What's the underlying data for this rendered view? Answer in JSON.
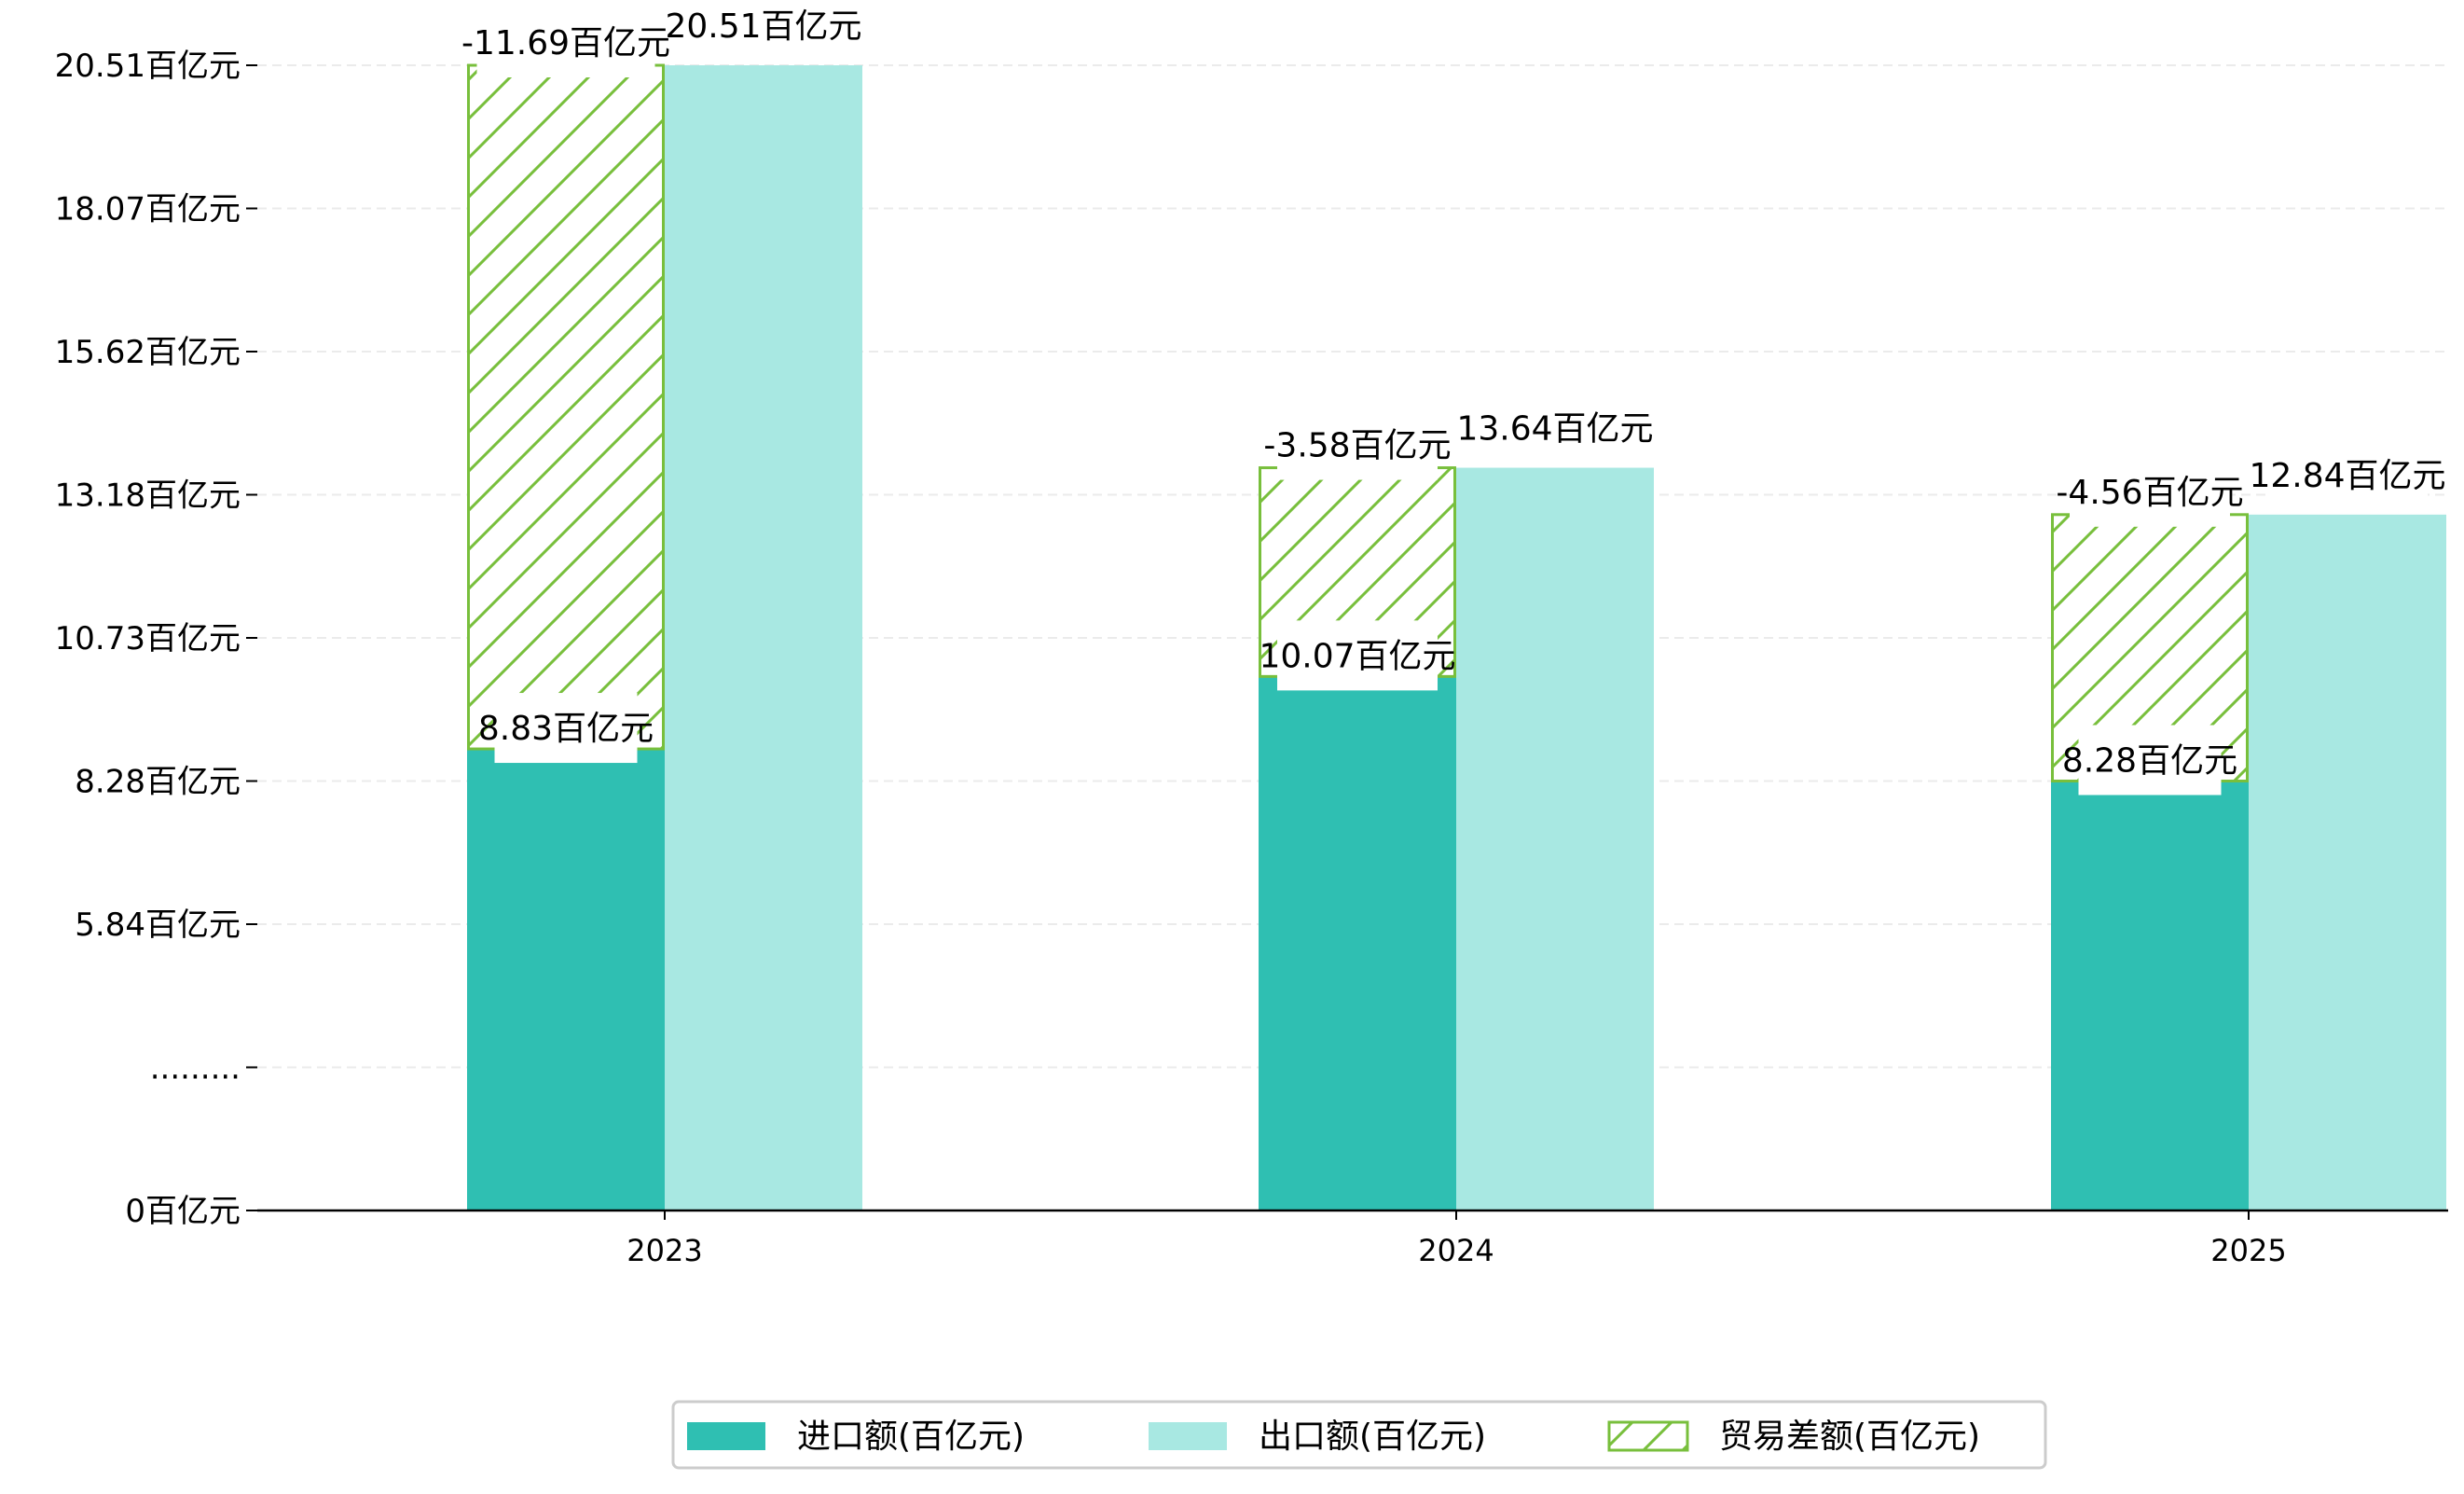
{
  "chart_data": {
    "type": "bar",
    "title": "",
    "xlabel": "",
    "ylabel": "",
    "categories": [
      "2023",
      "2024",
      "2025"
    ],
    "series": [
      {
        "name": "进口额(百亿元)",
        "values": [
          8.83,
          10.07,
          8.28
        ],
        "color": "#2fbfb2",
        "labels": [
          "8.83百亿元",
          "10.07百亿元",
          "8.28百亿元"
        ]
      },
      {
        "name": "出口额(百亿元)",
        "values": [
          20.51,
          13.64,
          12.84
        ],
        "color": "#a8e8e2",
        "labels": [
          "20.51百亿元",
          "13.64百亿元",
          "12.84百亿元"
        ]
      },
      {
        "name": "贸易差额(百亿元)",
        "values": [
          -11.69,
          -3.58,
          -4.56
        ],
        "color": "#78bf3c",
        "pattern": "hatch",
        "labels": [
          "-11.69百亿元",
          "-3.58百亿元",
          "-4.56百亿元"
        ]
      }
    ],
    "y_ticks": [
      {
        "value": 0,
        "label": "0百亿元"
      },
      {
        "value": null,
        "label": "........."
      },
      {
        "value": 5.84,
        "label": "5.84百亿元"
      },
      {
        "value": 8.28,
        "label": "8.28百亿元"
      },
      {
        "value": 10.73,
        "label": "10.73百亿元"
      },
      {
        "value": 13.18,
        "label": "13.18百亿元"
      },
      {
        "value": 15.62,
        "label": "15.62百亿元"
      },
      {
        "value": 18.07,
        "label": "18.07百亿元"
      },
      {
        "value": 20.51,
        "label": "20.51百亿元"
      }
    ],
    "ylim": [
      0,
      20.51
    ],
    "y_axis_break": true,
    "grid": "horizontal dashed",
    "legend_position": "bottom-center"
  }
}
